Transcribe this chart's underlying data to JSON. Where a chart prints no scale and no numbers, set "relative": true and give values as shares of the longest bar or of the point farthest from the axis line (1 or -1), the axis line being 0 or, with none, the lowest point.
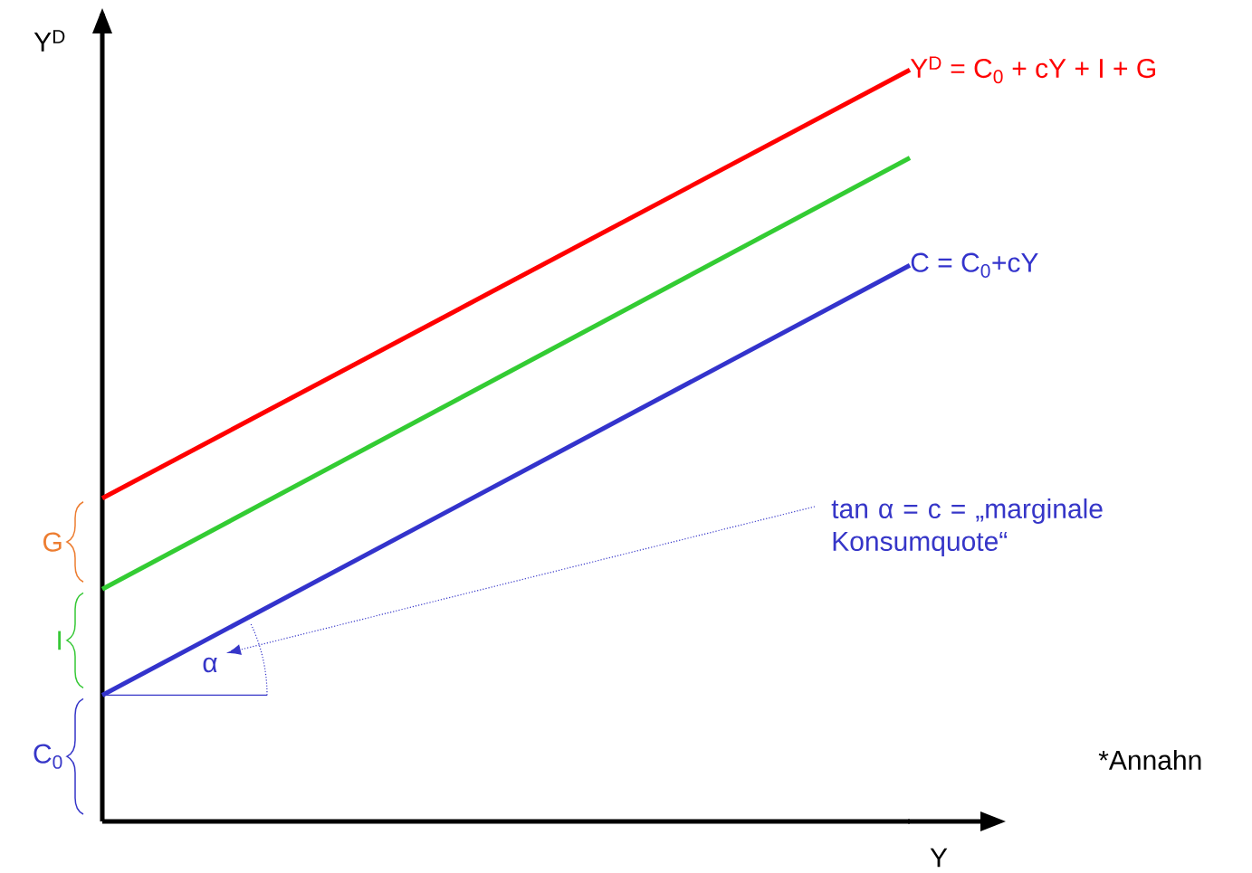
{
  "chart_data": {
    "type": "line",
    "relative": true,
    "xlabel": "Y",
    "ylabel": "Y$^{D}$",
    "categories": [
      null,
      null
    ],
    "series": [
      {
        "name": "C = C$_{0}$+cY",
        "color": "#3333cc",
        "values": [
          0.168,
          0.74
        ]
      },
      {
        "color": "#33cc33",
        "values": [
          0.309,
          0.883
        ]
      },
      {
        "name": "Y$^{D}$ = C$_{0}$ + cY + I + G",
        "color": "#ff0000",
        "values": [
          0.43,
          1
        ]
      }
    ],
    "annotations": [
      "tan α = c = „marginale Konsumquote“",
      "α",
      "*Annahn",
      "C$_{0}$",
      "I",
      "G"
    ]
  }
}
